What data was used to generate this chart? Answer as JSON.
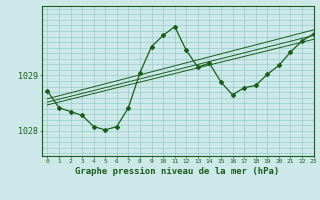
{
  "bg_color": "#cce8e8",
  "line_color": "#1a5c1a",
  "grid_color": "#99cccc",
  "axis_color": "#336633",
  "xlabel": "Graphe pression niveau de la mer (hPa)",
  "ylabel_ticks": [
    1028,
    1029
  ],
  "xlim": [
    -0.5,
    23
  ],
  "ylim": [
    1027.55,
    1030.25
  ],
  "x_ticks": [
    0,
    1,
    2,
    3,
    4,
    5,
    6,
    7,
    8,
    9,
    10,
    11,
    12,
    13,
    14,
    15,
    16,
    17,
    18,
    19,
    20,
    21,
    22,
    23
  ],
  "main_line_x": [
    0,
    1,
    2,
    3,
    4,
    5,
    6,
    7,
    8,
    9,
    10,
    11,
    12,
    13,
    14,
    15,
    16,
    17,
    18,
    19,
    20,
    21,
    22,
    23
  ],
  "main_line_y": [
    1028.72,
    1028.42,
    1028.35,
    1028.28,
    1028.08,
    1028.02,
    1028.08,
    1028.42,
    1029.05,
    1029.52,
    1029.72,
    1029.88,
    1029.45,
    1029.15,
    1029.22,
    1028.88,
    1028.65,
    1028.78,
    1028.82,
    1029.02,
    1029.18,
    1029.42,
    1029.62,
    1029.75
  ],
  "trend_lines": [
    {
      "x": [
        0,
        23
      ],
      "y": [
        1028.58,
        1029.82
      ]
    },
    {
      "x": [
        0,
        23
      ],
      "y": [
        1028.52,
        1029.72
      ]
    },
    {
      "x": [
        0,
        23
      ],
      "y": [
        1028.47,
        1029.65
      ]
    }
  ],
  "figsize": [
    3.2,
    2.0
  ],
  "dpi": 100
}
